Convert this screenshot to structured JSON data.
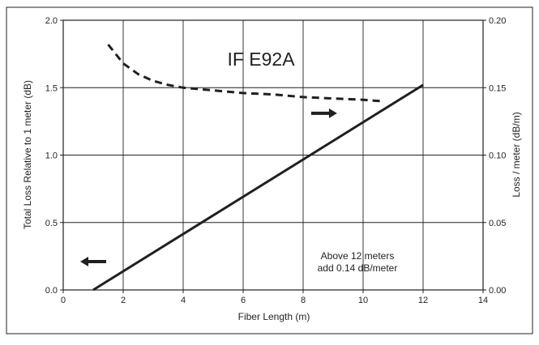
{
  "chart_data": {
    "type": "line",
    "title": "IF E92A",
    "xlabel": "Fiber Length (m)",
    "ylabel": "Total Loss Relative to 1 meter (dB)",
    "y2label": "Loss / meter (dB/m)",
    "xlim": [
      0,
      14
    ],
    "ylim": [
      0,
      2.0
    ],
    "y2lim": [
      0,
      0.2
    ],
    "xticks": [
      "0",
      "2",
      "4",
      "6",
      "8",
      "10",
      "12",
      "14"
    ],
    "yticks": [
      "0.0",
      "0.5",
      "1.0",
      "1.5",
      "2.0"
    ],
    "y2ticks": [
      "0.00",
      "0.05",
      "0.10",
      "0.15",
      "0.20"
    ],
    "grid": true,
    "series": [
      {
        "axis": "left",
        "style": "solid",
        "x": [
          1.0,
          12.0
        ],
        "y": [
          0.0,
          1.52
        ]
      },
      {
        "axis": "right",
        "style": "dashed",
        "x": [
          1.5,
          2.0,
          2.5,
          3.0,
          3.5,
          4.0,
          5.0,
          6.0,
          7.0,
          8.0,
          9.0,
          10.0,
          10.6
        ],
        "y": [
          0.182,
          0.168,
          0.16,
          0.155,
          0.152,
          0.15,
          0.148,
          0.146,
          0.145,
          0.143,
          0.142,
          0.141,
          0.14
        ]
      }
    ],
    "annotations": [
      {
        "line1": "Above 12 meters",
        "line2": "add 0.14 dB/meter",
        "x": 9.3,
        "y": 0.18
      }
    ],
    "arrows": [
      {
        "direction": "right",
        "axis": "right",
        "x": 8.7,
        "y": 0.131
      },
      {
        "direction": "left",
        "axis": "left",
        "x": 1.0,
        "y": 0.21
      }
    ]
  }
}
